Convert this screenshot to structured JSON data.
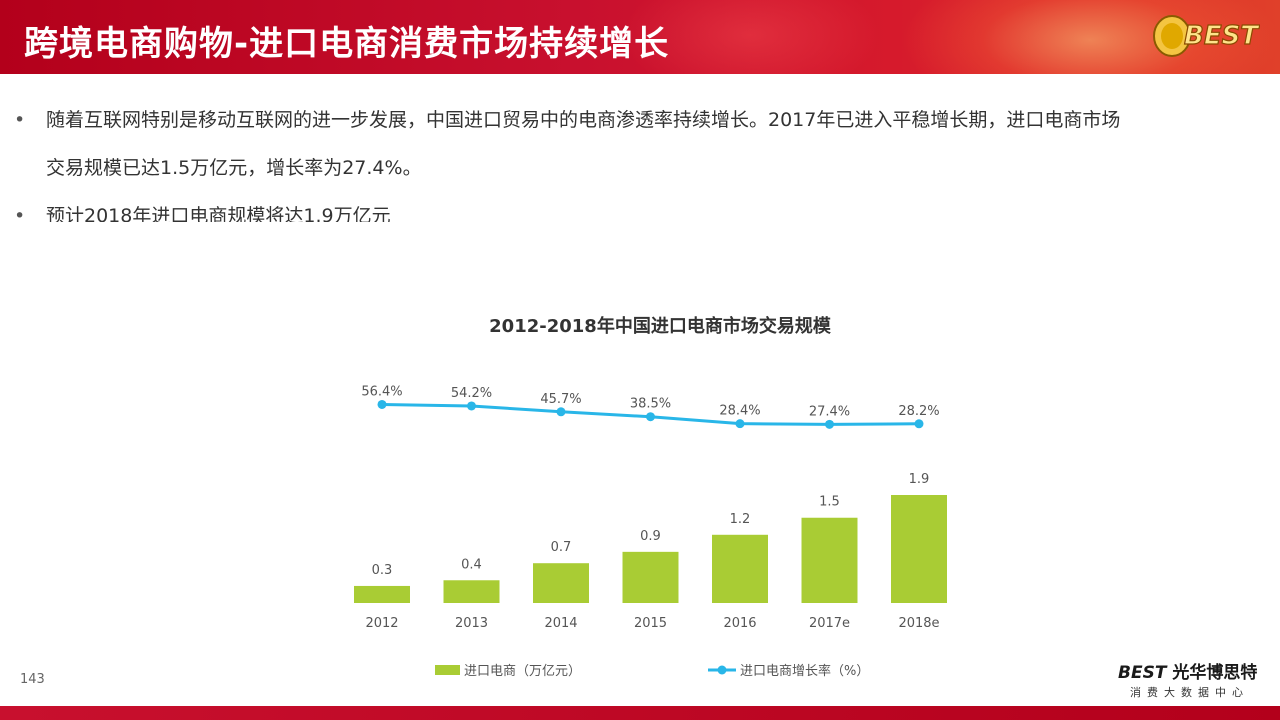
{
  "header": {
    "title": "跨境电商购物-进口电商消费市场持续增长",
    "logo_text": "BEST"
  },
  "bullets": [
    {
      "marker": "•",
      "line1": "随着互联网特别是移动互联网的进一步发展，中国进口贸易中的电商渗透率持续增长。2017年已进入平稳增长期，进口电商市场",
      "line2": "交易规模已达1.5万亿元，增长率为27.4%。"
    },
    {
      "marker": "•",
      "line1": "预计2018年进口电商规模将达1.9万亿元",
      "line2": ""
    }
  ],
  "chart_data": {
    "type": "bar",
    "title": "2012-2018年中国进口电商市场交易规模",
    "categories": [
      "2012",
      "2013",
      "2014",
      "2015",
      "2016",
      "2017e",
      "2018e"
    ],
    "series": [
      {
        "name": "进口电商（万亿元）",
        "type": "bar",
        "color": "#a9cc34",
        "values": [
          0.3,
          0.4,
          0.7,
          0.9,
          1.2,
          1.5,
          1.9
        ]
      },
      {
        "name": "进口电商增长率（%）",
        "type": "line",
        "color": "#29b6e8",
        "values": [
          56.4,
          54.2,
          45.7,
          38.5,
          28.4,
          27.4,
          28.2
        ]
      }
    ],
    "legend": "bottom",
    "grid": false
  },
  "footer": {
    "page_number": "143",
    "brand_best": "BEST",
    "brand_name": "光华博思特",
    "brand_sub": "消费大数据中心"
  },
  "colors": {
    "header_red": "#c8102e",
    "bar_green": "#a9cc34",
    "line_blue": "#29b6e8"
  }
}
